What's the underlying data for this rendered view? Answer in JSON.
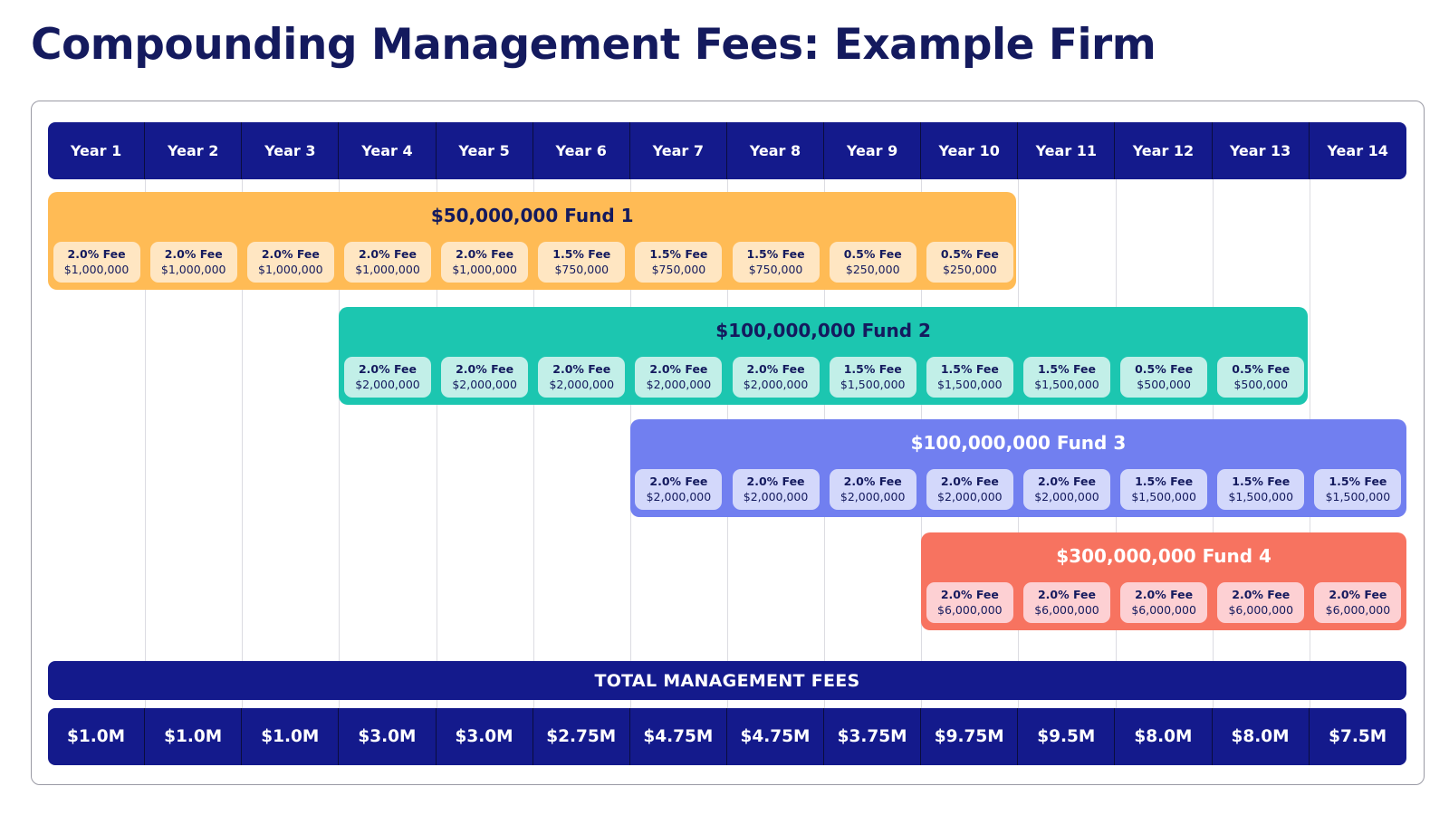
{
  "title": "Compounding Management Fees: Example Firm",
  "years": [
    "Year 1",
    "Year 2",
    "Year 3",
    "Year 4",
    "Year 5",
    "Year 6",
    "Year 7",
    "Year 8",
    "Year 9",
    "Year 10",
    "Year 11",
    "Year 12",
    "Year 13",
    "Year 14"
  ],
  "funds": [
    {
      "name": "$50,000,000 Fund 1",
      "start_year": 1,
      "color": "#ffbb55",
      "chip_color": "#ffe6c2",
      "title_color": "#141a5e",
      "fees": [
        {
          "rate": "2.0% Fee",
          "amount": "$1,000,000"
        },
        {
          "rate": "2.0% Fee",
          "amount": "$1,000,000"
        },
        {
          "rate": "2.0% Fee",
          "amount": "$1,000,000"
        },
        {
          "rate": "2.0% Fee",
          "amount": "$1,000,000"
        },
        {
          "rate": "2.0% Fee",
          "amount": "$1,000,000"
        },
        {
          "rate": "1.5% Fee",
          "amount": "$750,000"
        },
        {
          "rate": "1.5% Fee",
          "amount": "$750,000"
        },
        {
          "rate": "1.5% Fee",
          "amount": "$750,000"
        },
        {
          "rate": "0.5% Fee",
          "amount": "$250,000"
        },
        {
          "rate": "0.5% Fee",
          "amount": "$250,000"
        }
      ]
    },
    {
      "name": "$100,000,000 Fund 2",
      "start_year": 4,
      "color": "#1cc6b0",
      "chip_color": "#c2efe8",
      "title_color": "#141a5e",
      "fees": [
        {
          "rate": "2.0% Fee",
          "amount": "$2,000,000"
        },
        {
          "rate": "2.0% Fee",
          "amount": "$2,000,000"
        },
        {
          "rate": "2.0% Fee",
          "amount": "$2,000,000"
        },
        {
          "rate": "2.0% Fee",
          "amount": "$2,000,000"
        },
        {
          "rate": "2.0% Fee",
          "amount": "$2,000,000"
        },
        {
          "rate": "1.5% Fee",
          "amount": "$1,500,000"
        },
        {
          "rate": "1.5% Fee",
          "amount": "$1,500,000"
        },
        {
          "rate": "1.5% Fee",
          "amount": "$1,500,000"
        },
        {
          "rate": "0.5% Fee",
          "amount": "$500,000"
        },
        {
          "rate": "0.5% Fee",
          "amount": "$500,000"
        }
      ]
    },
    {
      "name": "$100,000,000 Fund 3",
      "start_year": 7,
      "color": "#717ff0",
      "chip_color": "#d3d8fb",
      "title_color": "#ffffff",
      "fees": [
        {
          "rate": "2.0% Fee",
          "amount": "$2,000,000"
        },
        {
          "rate": "2.0% Fee",
          "amount": "$2,000,000"
        },
        {
          "rate": "2.0% Fee",
          "amount": "$2,000,000"
        },
        {
          "rate": "2.0% Fee",
          "amount": "$2,000,000"
        },
        {
          "rate": "2.0% Fee",
          "amount": "$2,000,000"
        },
        {
          "rate": "1.5% Fee",
          "amount": "$1,500,000"
        },
        {
          "rate": "1.5% Fee",
          "amount": "$1,500,000"
        },
        {
          "rate": "1.5% Fee",
          "amount": "$1,500,000"
        }
      ]
    },
    {
      "name": "$300,000,000 Fund 4",
      "start_year": 10,
      "color": "#f77360",
      "chip_color": "#fdd0d3",
      "title_color": "#ffffff",
      "fees": [
        {
          "rate": "2.0% Fee",
          "amount": "$6,000,000"
        },
        {
          "rate": "2.0% Fee",
          "amount": "$6,000,000"
        },
        {
          "rate": "2.0% Fee",
          "amount": "$6,000,000"
        },
        {
          "rate": "2.0% Fee",
          "amount": "$6,000,000"
        },
        {
          "rate": "2.0% Fee",
          "amount": "$6,000,000"
        }
      ]
    }
  ],
  "total_label": "TOTAL MANAGEMENT FEES",
  "totals": [
    "$1.0M",
    "$1.0M",
    "$1.0M",
    "$3.0M",
    "$3.0M",
    "$2.75M",
    "$4.75M",
    "$4.75M",
    "$3.75M",
    "$9.75M",
    "$9.5M",
    "$8.0M",
    "$8.0M",
    "$7.5M"
  ],
  "colors": {
    "navy": "#141a8c",
    "title": "#141a5e"
  }
}
